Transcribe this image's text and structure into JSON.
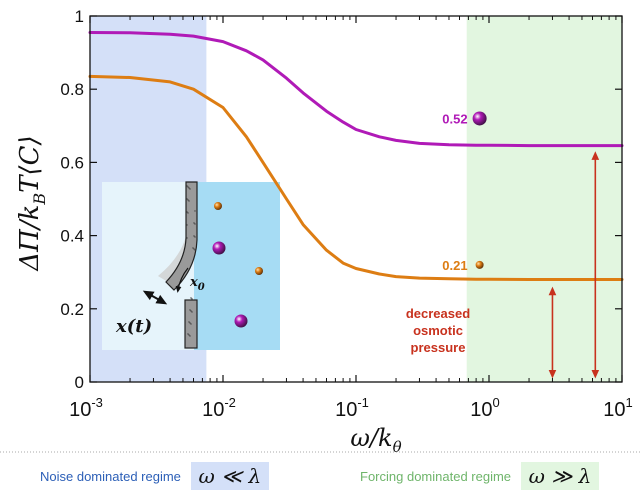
{
  "chart_data": {
    "type": "line",
    "xscale": "log",
    "xlim": [
      0.001,
      10
    ],
    "ylim": [
      0,
      1
    ],
    "xlabel": "ω/kθ",
    "ylabel": "ΔΠ/k_BT⟨C⟩",
    "x_ticks": [
      "10^-3",
      "10^-2",
      "10^-1",
      "10^0",
      "10^1"
    ],
    "y_ticks": [
      "0",
      "0.2",
      "0.4",
      "0.6",
      "0.8",
      "1"
    ],
    "grid": false,
    "series": [
      {
        "color": "#b01ab7",
        "x": [
          0.001,
          0.002,
          0.004,
          0.006,
          0.01,
          0.015,
          0.02,
          0.03,
          0.04,
          0.06,
          0.08,
          0.1,
          0.15,
          0.2,
          0.3,
          0.5,
          0.8,
          1,
          2,
          5,
          10
        ],
        "y": [
          0.955,
          0.954,
          0.95,
          0.945,
          0.93,
          0.905,
          0.88,
          0.83,
          0.79,
          0.74,
          0.71,
          0.69,
          0.67,
          0.66,
          0.652,
          0.648,
          0.647,
          0.647,
          0.646,
          0.646,
          0.646
        ]
      },
      {
        "color": "#dd7d13",
        "x": [
          0.001,
          0.002,
          0.004,
          0.006,
          0.01,
          0.015,
          0.02,
          0.03,
          0.04,
          0.06,
          0.08,
          0.1,
          0.15,
          0.2,
          0.3,
          0.5,
          0.8,
          1,
          2,
          5,
          10
        ],
        "y": [
          0.835,
          0.832,
          0.82,
          0.8,
          0.75,
          0.67,
          0.6,
          0.5,
          0.43,
          0.36,
          0.325,
          0.31,
          0.295,
          0.288,
          0.284,
          0.282,
          0.281,
          0.281,
          0.28,
          0.28,
          0.28
        ]
      }
    ],
    "regions": [
      {
        "name": "noise",
        "x_range": [
          0.001,
          0.0075
        ],
        "color": "#d4e0f8"
      },
      {
        "name": "forcing",
        "x_range": [
          0.68,
          10
        ],
        "color": "#e2f6e0"
      }
    ],
    "annotations": [
      {
        "text": "0.52",
        "x": 0.85,
        "y": 0.72,
        "color": "#b01ab7",
        "marker": "large-sphere"
      },
      {
        "text": "0.21",
        "x": 0.85,
        "y": 0.32,
        "color": "#dd7d13",
        "marker": "small-sphere"
      },
      {
        "text": "decreased\nosmotic\npressure",
        "color": "#c8321e"
      }
    ],
    "inset": {
      "labels": [
        "x(t)",
        "x0"
      ],
      "particles": [
        {
          "color": "#dd7d13",
          "size": "small"
        },
        {
          "color": "#b01ab7",
          "size": "large"
        },
        {
          "color": "#dd7d13",
          "size": "small"
        },
        {
          "color": "#b01ab7",
          "size": "large"
        }
      ]
    }
  },
  "captions": {
    "noise_text": "Noise dominated regime",
    "noise_formula": "ω ≪ λ",
    "forcing_text": "Forcing dominated regime",
    "forcing_formula": "ω ≫ λ"
  }
}
